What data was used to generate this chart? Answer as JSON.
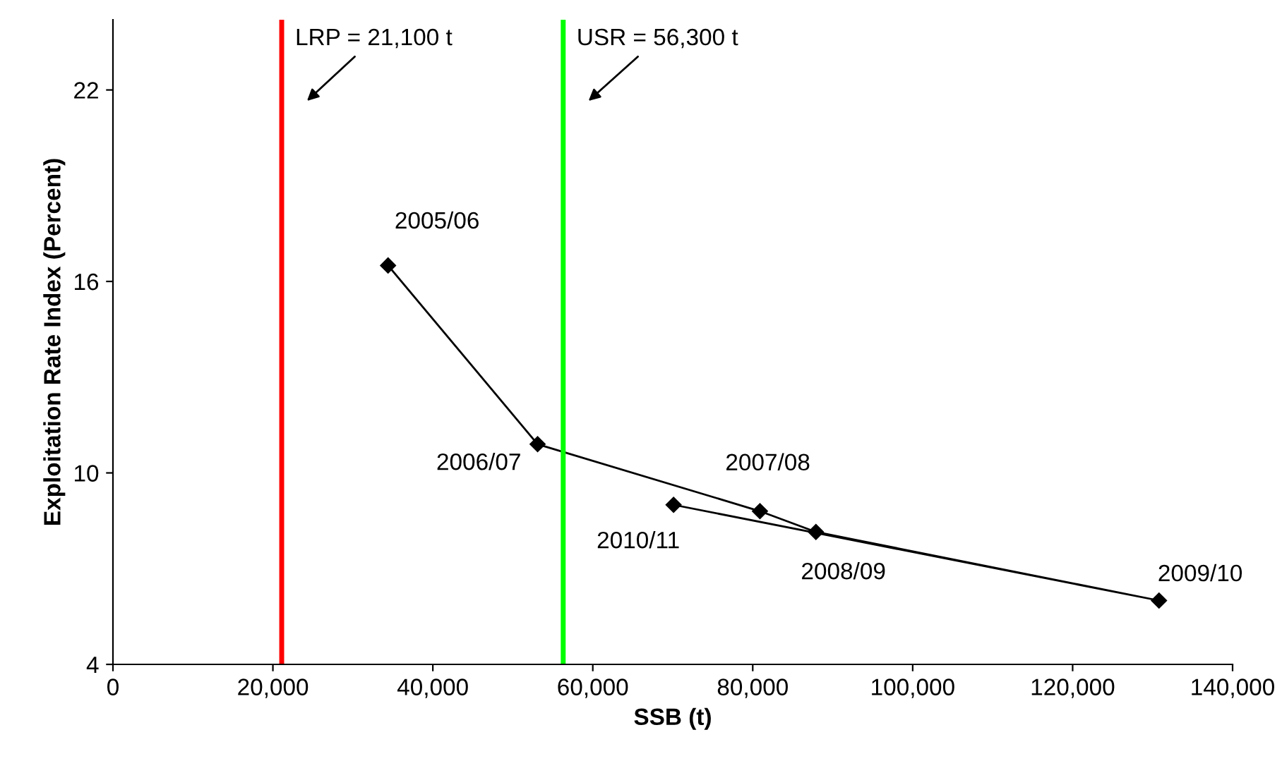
{
  "chart_data": {
    "type": "line",
    "xlabel": "SSB (t)",
    "ylabel": "Exploitation Rate Index (Percent)",
    "x": [
      34400,
      53100,
      80900,
      87900,
      130800,
      70100
    ],
    "series": [
      {
        "color": "#000000",
        "values": [
          16.5,
          10.9,
          8.8,
          8.15,
          6.0,
          9.0
        ]
      }
    ],
    "marker": "diamond",
    "line_style": "solid",
    "grid": false,
    "xlim": [
      0,
      140000
    ],
    "xticks": [
      {
        "value": 0,
        "label": "0"
      },
      {
        "value": 20000,
        "label": "20,000"
      },
      {
        "value": 40000,
        "label": "40,000"
      },
      {
        "value": 60000,
        "label": "60,000"
      },
      {
        "value": 80000,
        "label": "80,000"
      },
      {
        "value": 100000,
        "label": "100,000"
      },
      {
        "value": 120000,
        "label": "120,000"
      },
      {
        "value": 140000,
        "label": "140,000"
      }
    ],
    "ylim": [
      4,
      24.2
    ],
    "yticks": [
      4,
      10,
      16,
      22
    ],
    "ref_lines": [
      {
        "axis": "x",
        "value": 21100,
        "label": "LRP = 21,100 t",
        "color": "#ff0000"
      },
      {
        "axis": "x",
        "value": 56300,
        "label": "USR = 56,300 t",
        "color": "#00ff00"
      }
    ],
    "annotations": [
      {
        "text": "2005/06",
        "x": 34400,
        "y": 16.5
      },
      {
        "text": "2006/07",
        "x": 53100,
        "y": 10.9
      },
      {
        "text": "2007/08",
        "x": 80900,
        "y": 8.8
      },
      {
        "text": "2008/09",
        "x": 87900,
        "y": 8.15
      },
      {
        "text": "2009/10",
        "x": 130800,
        "y": 6.0
      },
      {
        "text": "2010/11",
        "x": 70100,
        "y": 9.0
      }
    ]
  }
}
